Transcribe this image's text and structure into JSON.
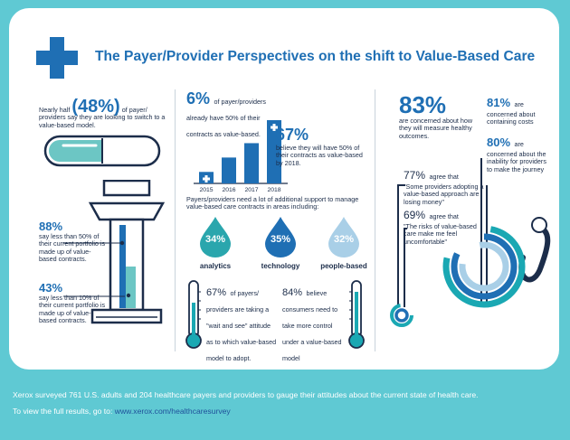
{
  "header": {
    "title": "The Payer/Provider Perspectives on the shift to Value-Based Care",
    "icon": "medical-cross-icon",
    "accent": "#1f6fb4",
    "teal": "#1aa8b3",
    "background": "#5fc9d3"
  },
  "left": {
    "nearly_half_prefix": "Nearly half",
    "nearly_half_value": "(48%)",
    "nearly_half_suffix": "of payer/",
    "nearly_half_rest": "providers say they are looking to switch to a value-based model.",
    "stat88_value": "88%",
    "stat88_text": "say less than 50% of their current portfolio is made up of value-based contracts.",
    "stat43_value": "43%",
    "stat43_text": "say less than 10% of their current portfolio is made up of value-based contracts."
  },
  "middle": {
    "stat6_value": "6%",
    "stat6_text": "of payer/providers already have 50% of their contracts as value-based.",
    "stat67_value": "67%",
    "stat67_text": "believe they will have 50% of their contracts as value-based by 2018.",
    "support_text": "Payers/providers need a lot of additional support to manage value-based care contracts in areas including:",
    "drops": [
      {
        "pct": "34%",
        "label": "analytics"
      },
      {
        "pct": "35%",
        "label": "technology"
      },
      {
        "pct": "32%",
        "label": "people-based"
      }
    ],
    "therm1_value": "67%",
    "therm1_text": "of payers/ providers are taking a \"wait and see\" attitude as to which value-based model to adopt.",
    "therm2_value": "84%",
    "therm2_text": "believe consumers need to take more control under a value-based model"
  },
  "chart_data": {
    "type": "bar",
    "categories": [
      "2015",
      "2016",
      "2017",
      "2018"
    ],
    "values": [
      8,
      18,
      28,
      44
    ],
    "xlabel": "",
    "ylabel": ""
  },
  "right": {
    "stat83_value": "83%",
    "stat83_text": "are concerned about how they will measure healthy outcomes.",
    "stat81_value": "81%",
    "stat81_text1": "are",
    "stat81_text2": "concerned about containing costs",
    "stat80_value": "80%",
    "stat80_text1": "are",
    "stat80_text2": "concerned about the inability for providers to make the journey",
    "stat77_value": "77%",
    "stat77_text1": "agree that",
    "stat77_text2": "\"Some providers adopting a value-based approach are losing money\"",
    "stat69_value": "69%",
    "stat69_text1": "agree that",
    "stat69_text2": "\"The risks of value-based care make me feel uncomfortable\""
  },
  "footer": {
    "line1": "Xerox surveyed 761 U.S. adults and 204 healthcare payers and providers to gauge their attitudes about the current state of health care.",
    "line2": "To view the full results, go to:",
    "link": "www.xerox.com/healthcaresurvey"
  }
}
